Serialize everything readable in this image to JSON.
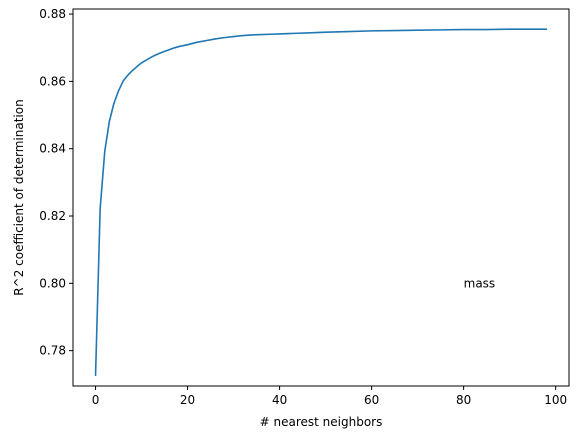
{
  "chart_data": {
    "type": "line",
    "title": "",
    "xlabel": "# nearest neighbors",
    "ylabel": "R^2 coefficient of determination",
    "xlim": [
      -4.9,
      102.9
    ],
    "ylim": [
      0.7695,
      0.8815
    ],
    "xticks": [
      0,
      20,
      40,
      60,
      80,
      100
    ],
    "yticks": [
      0.78,
      0.8,
      0.82,
      0.84,
      0.86,
      0.88
    ],
    "ytick_labels": [
      "0.78",
      "0.80",
      "0.82",
      "0.84",
      "0.86",
      "0.88"
    ],
    "grid": false,
    "legend": "none",
    "line_color": "#1f77b4",
    "annotations": [
      {
        "text": "mass",
        "x": 80,
        "y": 0.8
      }
    ],
    "series": [
      {
        "x": [
          0,
          1,
          2,
          3,
          4,
          5,
          6,
          7,
          8,
          9,
          10,
          11,
          12,
          13,
          14,
          15,
          16,
          17,
          18,
          19,
          20,
          22,
          24,
          26,
          28,
          30,
          32,
          34,
          36,
          38,
          40,
          42,
          44,
          46,
          48,
          50,
          55,
          60,
          65,
          70,
          75,
          80,
          85,
          90,
          95,
          98
        ],
        "values": [
          0.7727,
          0.8222,
          0.8392,
          0.8481,
          0.8535,
          0.8572,
          0.8601,
          0.8618,
          0.8632,
          0.8644,
          0.8655,
          0.8663,
          0.8671,
          0.8678,
          0.8684,
          0.8689,
          0.8694,
          0.8699,
          0.8703,
          0.8706,
          0.8709,
          0.8716,
          0.8721,
          0.8726,
          0.873,
          0.8733,
          0.8736,
          0.8738,
          0.8739,
          0.874,
          0.8741,
          0.8742,
          0.8743,
          0.8744,
          0.8745,
          0.8746,
          0.8748,
          0.875,
          0.8751,
          0.8752,
          0.8753,
          0.8754,
          0.8754,
          0.8755,
          0.8755,
          0.8755
        ]
      }
    ]
  }
}
